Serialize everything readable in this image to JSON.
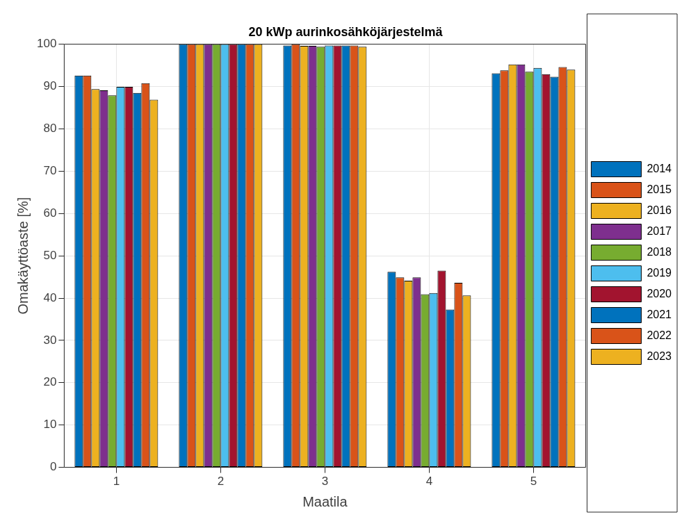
{
  "chart_data": {
    "type": "bar",
    "title": "20 kWp aurinkosähköjärjestelmä",
    "xlabel": "Maatila",
    "ylabel": "Omakäyttöaste [%]",
    "categories": [
      "1",
      "2",
      "3",
      "4",
      "5"
    ],
    "series": [
      {
        "name": "2014",
        "color": "#0072bd",
        "values": [
          92.6,
          100,
          99.7,
          46.2,
          93.1
        ]
      },
      {
        "name": "2015",
        "color": "#d95319",
        "values": [
          92.6,
          100,
          100,
          44.9,
          93.8
        ]
      },
      {
        "name": "2016",
        "color": "#edb120",
        "values": [
          89.4,
          100,
          99.6,
          44.1,
          95.2
        ]
      },
      {
        "name": "2017",
        "color": "#7e2f8e",
        "values": [
          89.1,
          100,
          99.6,
          44.9,
          95.2
        ]
      },
      {
        "name": "2018",
        "color": "#77ac30",
        "values": [
          87.9,
          100,
          99.4,
          40.9,
          93.5
        ]
      },
      {
        "name": "2019",
        "color": "#4dbeee",
        "values": [
          89.9,
          100,
          99.7,
          41.2,
          94.4
        ]
      },
      {
        "name": "2020",
        "color": "#a2142f",
        "values": [
          89.9,
          100,
          99.7,
          46.5,
          92.9
        ]
      },
      {
        "name": "2021",
        "color": "#0072bd",
        "values": [
          88.5,
          100,
          99.7,
          37.3,
          92.3
        ]
      },
      {
        "name": "2022",
        "color": "#d95319",
        "values": [
          90.8,
          100,
          99.7,
          43.6,
          94.6
        ]
      },
      {
        "name": "2023",
        "color": "#edb120",
        "values": [
          86.9,
          100,
          99.4,
          40.6,
          94.0
        ]
      }
    ],
    "ylim": [
      0,
      100
    ],
    "yticks": [
      0,
      10,
      20,
      30,
      40,
      50,
      60,
      70,
      80,
      90,
      100
    ],
    "grid": true,
    "legend": "right"
  }
}
